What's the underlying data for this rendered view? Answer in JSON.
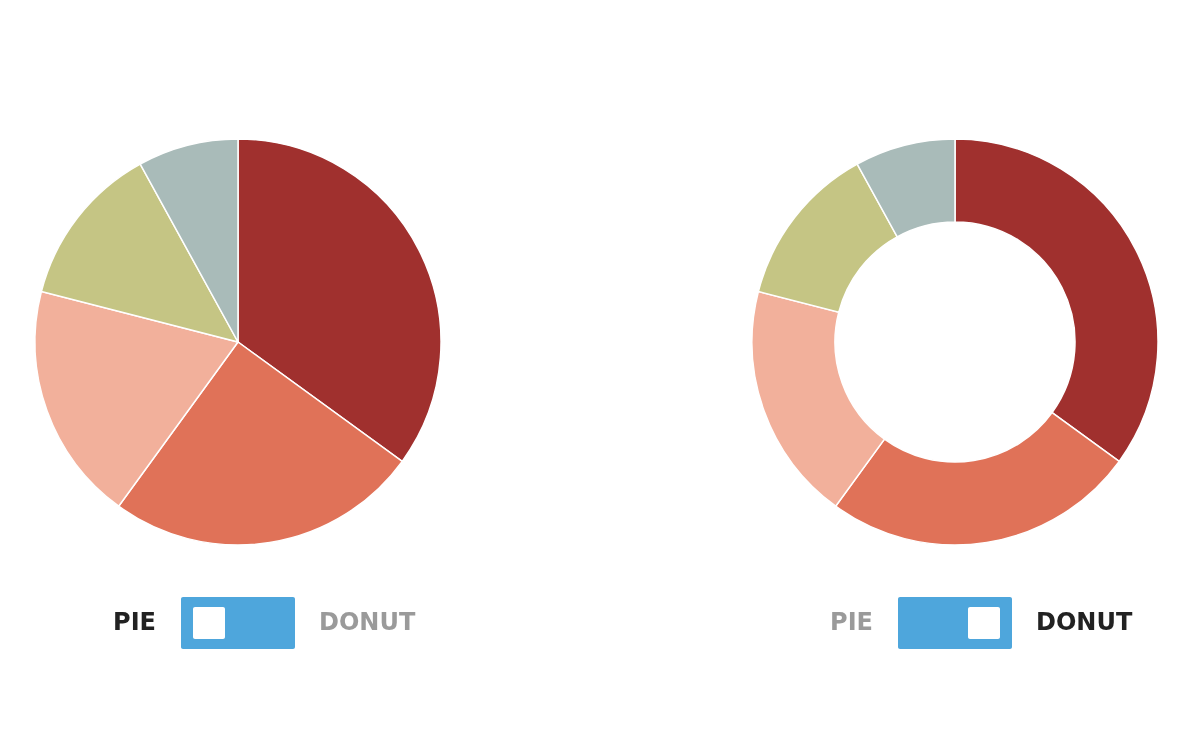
{
  "chart_data": [
    {
      "type": "pie",
      "categories": [
        null,
        null,
        null,
        null,
        null
      ],
      "values": [
        35,
        25,
        19,
        13,
        8
      ],
      "colors": [
        "#a0302e",
        "#e07258",
        "#f2b09b",
        "#c5c584",
        "#a9bbb9"
      ],
      "annotations": [
        "PIE",
        "DONUT"
      ]
    },
    {
      "type": "donut",
      "categories": [
        null,
        null,
        null,
        null,
        null
      ],
      "values": [
        35,
        25,
        19,
        13,
        8
      ],
      "colors": [
        "#a0302e",
        "#e07258",
        "#f2b09b",
        "#c5c584",
        "#a9bbb9"
      ],
      "annotations": [
        "PIE",
        "DONUT"
      ]
    }
  ]
}
